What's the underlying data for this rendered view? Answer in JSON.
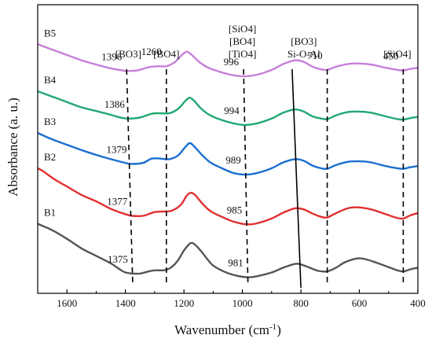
{
  "chart_data": {
    "type": "line",
    "xlabel": "Wavenumber (cm",
    "xlabel_sup": "-1",
    "xlabel_end": ")",
    "ylabel": "Absorbance (a. u.)",
    "xlim": [
      1700,
      400
    ],
    "x_reversed": true,
    "xticks": [
      1600,
      1400,
      1200,
      1000,
      800,
      600,
      400
    ],
    "grid": false,
    "series": [
      {
        "name": "B1",
        "color": "#555555",
        "offset": 0,
        "points": [
          [
            1700,
            5.0
          ],
          [
            1650,
            4.4
          ],
          [
            1600,
            3.6
          ],
          [
            1550,
            2.7
          ],
          [
            1500,
            2.0
          ],
          [
            1450,
            1.3
          ],
          [
            1420,
            0.75
          ],
          [
            1400,
            0.45
          ],
          [
            1375,
            0.35
          ],
          [
            1350,
            0.35
          ],
          [
            1320,
            0.55
          ],
          [
            1300,
            0.65
          ],
          [
            1280,
            0.65
          ],
          [
            1260,
            0.7
          ],
          [
            1240,
            1.0
          ],
          [
            1220,
            1.6
          ],
          [
            1200,
            2.5
          ],
          [
            1180,
            3.15
          ],
          [
            1170,
            3.2
          ],
          [
            1160,
            3.0
          ],
          [
            1140,
            2.4
          ],
          [
            1120,
            1.7
          ],
          [
            1100,
            1.1
          ],
          [
            1060,
            0.5
          ],
          [
            1020,
            0.15
          ],
          [
            981,
            0.0
          ],
          [
            950,
            0.1
          ],
          [
            900,
            0.45
          ],
          [
            860,
            0.9
          ],
          [
            820,
            1.25
          ],
          [
            800,
            1.2
          ],
          [
            770,
            0.9
          ],
          [
            740,
            0.6
          ],
          [
            710,
            0.55
          ],
          [
            680,
            0.9
          ],
          [
            650,
            1.4
          ],
          [
            610,
            1.75
          ],
          [
            580,
            1.7
          ],
          [
            540,
            1.35
          ],
          [
            500,
            0.95
          ],
          [
            470,
            0.65
          ],
          [
            450,
            0.55
          ],
          [
            425,
            0.75
          ],
          [
            400,
            0.9
          ]
        ]
      },
      {
        "name": "B2",
        "color": "#e03030",
        "offset": 4.6,
        "points": [
          [
            1700,
            5.6
          ],
          [
            1680,
            5.3
          ],
          [
            1650,
            4.7
          ],
          [
            1620,
            4.2
          ],
          [
            1600,
            3.9
          ],
          [
            1550,
            3.1
          ],
          [
            1500,
            2.5
          ],
          [
            1450,
            1.8
          ],
          [
            1400,
            1.3
          ],
          [
            1377,
            1.15
          ],
          [
            1340,
            1.15
          ],
          [
            1300,
            1.5
          ],
          [
            1270,
            1.55
          ],
          [
            1240,
            1.65
          ],
          [
            1210,
            2.2
          ],
          [
            1190,
            3.05
          ],
          [
            1175,
            3.3
          ],
          [
            1160,
            3.05
          ],
          [
            1140,
            2.4
          ],
          [
            1110,
            1.6
          ],
          [
            1070,
            1.05
          ],
          [
            1030,
            0.6
          ],
          [
            985,
            0.35
          ],
          [
            950,
            0.45
          ],
          [
            900,
            0.9
          ],
          [
            860,
            1.45
          ],
          [
            820,
            1.85
          ],
          [
            790,
            1.75
          ],
          [
            760,
            1.35
          ],
          [
            730,
            1.05
          ],
          [
            710,
            1.0
          ],
          [
            680,
            1.4
          ],
          [
            640,
            1.85
          ],
          [
            610,
            1.95
          ],
          [
            560,
            1.75
          ],
          [
            510,
            1.3
          ],
          [
            470,
            0.95
          ],
          [
            450,
            0.9
          ],
          [
            425,
            1.2
          ],
          [
            400,
            1.4
          ]
        ]
      },
      {
        "name": "B3",
        "color": "#1a6fd0",
        "offset": 9.3,
        "points": [
          [
            1700,
            4.2
          ],
          [
            1650,
            3.6
          ],
          [
            1600,
            3.1
          ],
          [
            1550,
            2.6
          ],
          [
            1500,
            2.15
          ],
          [
            1450,
            1.75
          ],
          [
            1400,
            1.4
          ],
          [
            1379,
            1.3
          ],
          [
            1340,
            1.4
          ],
          [
            1310,
            1.8
          ],
          [
            1280,
            1.8
          ],
          [
            1250,
            1.75
          ],
          [
            1220,
            2.1
          ],
          [
            1195,
            2.9
          ],
          [
            1180,
            3.25
          ],
          [
            1165,
            2.95
          ],
          [
            1140,
            2.2
          ],
          [
            1110,
            1.45
          ],
          [
            1070,
            0.9
          ],
          [
            1030,
            0.45
          ],
          [
            989,
            0.3
          ],
          [
            950,
            0.45
          ],
          [
            900,
            0.9
          ],
          [
            860,
            1.45
          ],
          [
            820,
            1.75
          ],
          [
            790,
            1.6
          ],
          [
            760,
            1.15
          ],
          [
            730,
            0.9
          ],
          [
            710,
            0.85
          ],
          [
            680,
            1.2
          ],
          [
            640,
            1.5
          ],
          [
            600,
            1.55
          ],
          [
            560,
            1.45
          ],
          [
            510,
            1.1
          ],
          [
            470,
            0.9
          ],
          [
            450,
            0.85
          ],
          [
            425,
            1.0
          ],
          [
            400,
            1.1
          ]
        ]
      },
      {
        "name": "B4",
        "color": "#22a872",
        "offset": 13.9,
        "points": [
          [
            1700,
            3.5
          ],
          [
            1650,
            3.0
          ],
          [
            1600,
            2.5
          ],
          [
            1550,
            2.0
          ],
          [
            1500,
            1.65
          ],
          [
            1450,
            1.3
          ],
          [
            1410,
            1.0
          ],
          [
            1386,
            0.95
          ],
          [
            1350,
            1.05
          ],
          [
            1310,
            1.4
          ],
          [
            1280,
            1.45
          ],
          [
            1250,
            1.45
          ],
          [
            1220,
            1.85
          ],
          [
            1195,
            2.6
          ],
          [
            1180,
            2.9
          ],
          [
            1165,
            2.6
          ],
          [
            1140,
            1.85
          ],
          [
            1110,
            1.25
          ],
          [
            1070,
            0.8
          ],
          [
            1030,
            0.5
          ],
          [
            994,
            0.35
          ],
          [
            950,
            0.5
          ],
          [
            900,
            0.95
          ],
          [
            860,
            1.5
          ],
          [
            820,
            1.8
          ],
          [
            790,
            1.6
          ],
          [
            760,
            1.15
          ],
          [
            730,
            0.95
          ],
          [
            710,
            0.9
          ],
          [
            680,
            1.25
          ],
          [
            640,
            1.55
          ],
          [
            600,
            1.6
          ],
          [
            560,
            1.5
          ],
          [
            510,
            1.15
          ],
          [
            470,
            0.9
          ],
          [
            450,
            0.85
          ],
          [
            425,
            1.0
          ],
          [
            400,
            1.1
          ]
        ]
      },
      {
        "name": "B5",
        "color": "#c77fd9",
        "offset": 18.4,
        "points": [
          [
            1700,
            3.4
          ],
          [
            1650,
            2.9
          ],
          [
            1600,
            2.4
          ],
          [
            1550,
            1.9
          ],
          [
            1500,
            1.5
          ],
          [
            1450,
            1.15
          ],
          [
            1410,
            0.95
          ],
          [
            1396,
            0.9
          ],
          [
            1360,
            0.95
          ],
          [
            1320,
            1.25
          ],
          [
            1290,
            1.35
          ],
          [
            1260,
            1.35
          ],
          [
            1230,
            1.75
          ],
          [
            1205,
            2.45
          ],
          [
            1190,
            2.7
          ],
          [
            1175,
            2.45
          ],
          [
            1150,
            1.8
          ],
          [
            1120,
            1.25
          ],
          [
            1080,
            0.85
          ],
          [
            1040,
            0.55
          ],
          [
            996,
            0.4
          ],
          [
            950,
            0.55
          ],
          [
            900,
            1.0
          ],
          [
            860,
            1.55
          ],
          [
            820,
            1.9
          ],
          [
            790,
            1.75
          ],
          [
            760,
            1.3
          ],
          [
            730,
            1.05
          ],
          [
            710,
            1.0
          ],
          [
            680,
            1.3
          ],
          [
            640,
            1.55
          ],
          [
            600,
            1.6
          ],
          [
            560,
            1.5
          ],
          [
            510,
            1.2
          ],
          [
            470,
            1.0
          ],
          [
            450,
            0.95
          ],
          [
            425,
            1.1
          ],
          [
            400,
            1.2
          ]
        ]
      }
    ],
    "series_labels": [
      "B5",
      "B4",
      "B3",
      "B2",
      "B1"
    ],
    "peak_labels": [
      {
        "text": "1396",
        "series": "B5",
        "x": 1396
      },
      {
        "text": "1260",
        "series": "B5",
        "x": 1260
      },
      {
        "text": "996",
        "series": "B5",
        "x": 996
      },
      {
        "text": "710",
        "series": "B5",
        "x": 710
      },
      {
        "text": "450",
        "series": "B5",
        "x": 450
      },
      {
        "text": "1386",
        "series": "B4",
        "x": 1386
      },
      {
        "text": "994",
        "series": "B4",
        "x": 994
      },
      {
        "text": "1379",
        "series": "B3",
        "x": 1379
      },
      {
        "text": "989",
        "series": "B3",
        "x": 989
      },
      {
        "text": "1377",
        "series": "B2",
        "x": 1377
      },
      {
        "text": "985",
        "series": "B2",
        "x": 985
      },
      {
        "text": "1375",
        "series": "B1",
        "x": 1375
      },
      {
        "text": "981",
        "series": "B1",
        "x": 981
      }
    ],
    "band_annotations": [
      {
        "lines": [
          "[BO3]"
        ],
        "x": 1390
      },
      {
        "lines": [
          "[BO4]"
        ],
        "x": 1260
      },
      {
        "lines": [
          "[SiO4]",
          "[BO4]",
          "[TiO4]"
        ],
        "x": 1000
      },
      {
        "lines": [
          "[BO3]",
          "Si-O-Al"
        ],
        "x": 790
      },
      {
        "lines": [
          "[SiO4]"
        ],
        "x": 470
      }
    ],
    "dashed_guides": [
      {
        "x_top": 1396,
        "x_bottom": 1375
      },
      {
        "x_top": 1260,
        "x_bottom": 1260
      },
      {
        "x_top": 996,
        "x_bottom": 981
      },
      {
        "x_top": 710,
        "x_bottom": 710
      },
      {
        "x_top": 450,
        "x_bottom": 450
      }
    ],
    "solid_guides": [
      {
        "x_top": 830,
        "x_bottom": 800
      }
    ]
  }
}
